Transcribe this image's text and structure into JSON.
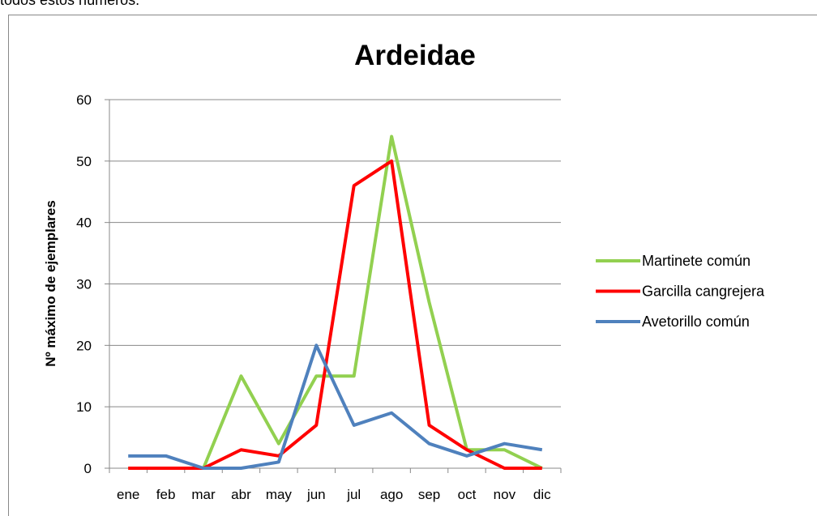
{
  "text_above": "todos estos números.",
  "chart_data": {
    "type": "line",
    "title": "Ardeidae",
    "y_label": "Nº máximo de ejemplares",
    "categories": [
      "ene",
      "feb",
      "mar",
      "abr",
      "may",
      "jun",
      "jul",
      "ago",
      "sep",
      "oct",
      "nov",
      "dic"
    ],
    "series": [
      {
        "name": "Martinete común",
        "color": "#92d050",
        "values": [
          0,
          0,
          0,
          15,
          4,
          15,
          15,
          54,
          27,
          3,
          3,
          0
        ]
      },
      {
        "name": "Garcilla cangrejera",
        "color": "#ff0000",
        "values": [
          0,
          0,
          0,
          3,
          2,
          7,
          46,
          50,
          7,
          3,
          0,
          0
        ]
      },
      {
        "name": "Avetorillo común",
        "color": "#4f81bd",
        "values": [
          2,
          2,
          0,
          0,
          1,
          20,
          7,
          9,
          4,
          2,
          4,
          3
        ]
      }
    ],
    "ylim": [
      0,
      60
    ],
    "yticks": [
      0,
      10,
      20,
      30,
      40,
      50,
      60
    ],
    "grid": true,
    "legend": "right"
  }
}
